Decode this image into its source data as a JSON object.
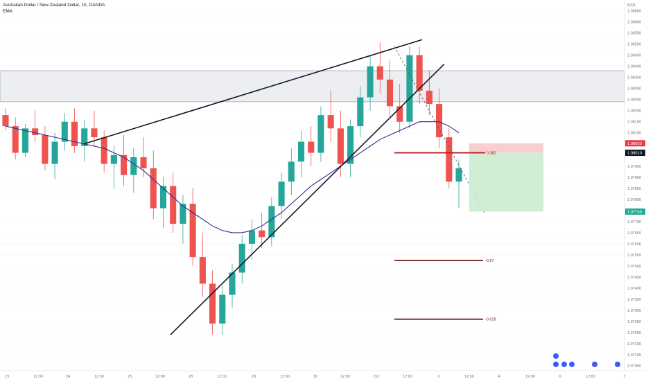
{
  "legend": {
    "symbol_line": "Australian Dollar / New Zealand Dollar, 1h, OANDA",
    "indicator": "EMA"
  },
  "price_axis": {
    "currency": "NZD",
    "labels": [
      "1.08650",
      "1.08600",
      "1.08550",
      "1.08500",
      "1.08450",
      "1.08400",
      "1.08350",
      "1.08300",
      "1.08250",
      "1.08200",
      "1.08150",
      "1.08100",
      "1.07950",
      "1.07900",
      "1.07850",
      "1.07800",
      "1.07700",
      "1.07650",
      "1.07600",
      "1.07550",
      "1.07500",
      "1.07450",
      "1.07400",
      "1.07350",
      "1.07300",
      "1.07250",
      "1.07200",
      "1.07150",
      "1.07100",
      "1.07050"
    ],
    "badges": {
      "stop": "1.08053",
      "entry": "1.08010",
      "target": "1.07745"
    },
    "colors": {
      "stop": "#f23645",
      "entry": "#131722",
      "target": "#22ab94"
    }
  },
  "time_axis": {
    "labels": [
      "23",
      "12:00",
      "24",
      "12:00",
      "25",
      "12:00",
      "28",
      "12:00",
      "29",
      "12:00",
      "30",
      "12:00",
      "Oct",
      "12:00",
      "2",
      "12:00",
      "4",
      "12:00",
      "6",
      "12:00",
      "7"
    ]
  },
  "fib_levels": {
    "level_a": "0.382",
    "level_b": "-0.27",
    "level_c": "-0.618"
  },
  "chart_data": {
    "type": "candlestick",
    "symbol": "Australian Dollar / New Zealand Dollar, 1h, OANDA",
    "indicator": "EMA",
    "ylim": [
      1.0705,
      1.0868
    ],
    "colors": {
      "up": "#26a69a",
      "down": "#ef5350",
      "ema": "#2a2e8a",
      "zone": "#eceef2"
    },
    "resistance_zone": [
      1.0824,
      1.0838
    ],
    "trendline_upper": [
      [
        1.0805,
        "24"
      ],
      [
        1.0852,
        "Oct"
      ]
    ],
    "trendline_lower": [
      [
        1.0719,
        "25 12:00"
      ],
      [
        1.0841,
        "2"
      ]
    ],
    "position": {
      "stop": 1.08053,
      "entry": 1.0801,
      "target": 1.07745
    },
    "fib_values": {
      "0.382": 1.0801,
      "-0.27": 1.07525,
      "-0.618": 1.0726
    },
    "ema_values": [
      1.0813,
      1.0812,
      1.0811,
      1.081,
      1.0809,
      1.0808,
      1.0807,
      1.0806,
      1.0805,
      1.0804,
      1.0803,
      1.0801,
      1.0799,
      1.0796,
      1.0793,
      1.0789,
      1.0785,
      1.0781,
      1.0777,
      1.0774,
      1.0771,
      1.0768,
      1.0766,
      1.0765,
      1.0765,
      1.0766,
      1.0768,
      1.0771,
      1.0774,
      1.0778,
      1.0782,
      1.0786,
      1.0789,
      1.0792,
      1.0795,
      1.0798,
      1.0801,
      1.0804,
      1.0807,
      1.0809,
      1.0811,
      1.0813,
      1.0815,
      1.0815,
      1.0815,
      1.0813,
      1.081
    ],
    "candles": [
      [
        1.0818,
        1.0821,
        1.0811,
        1.0813
      ],
      [
        1.0813,
        1.0817,
        1.0798,
        1.0801
      ],
      [
        1.0801,
        1.0814,
        1.0799,
        1.0812
      ],
      [
        1.0812,
        1.082,
        1.0806,
        1.0809
      ],
      [
        1.0809,
        1.0813,
        1.0793,
        1.0796
      ],
      [
        1.0796,
        1.081,
        1.0789,
        1.0806
      ],
      [
        1.0806,
        1.0819,
        1.0802,
        1.0815
      ],
      [
        1.0815,
        1.0821,
        1.0801,
        1.0804
      ],
      [
        1.0804,
        1.0816,
        1.0797,
        1.0812
      ],
      [
        1.0812,
        1.082,
        1.0804,
        1.0808
      ],
      [
        1.0808,
        1.0811,
        1.0792,
        1.0796
      ],
      [
        1.0796,
        1.0804,
        1.0785,
        1.08
      ],
      [
        1.08,
        1.0809,
        1.0786,
        1.0791
      ],
      [
        1.0791,
        1.0803,
        1.0783,
        1.0799
      ],
      [
        1.0799,
        1.0808,
        1.079,
        1.0794
      ],
      [
        1.0794,
        1.0802,
        1.0771,
        1.0776
      ],
      [
        1.0776,
        1.079,
        1.0767,
        1.0786
      ],
      [
        1.0786,
        1.0792,
        1.0765,
        1.0769
      ],
      [
        1.0769,
        1.0782,
        1.076,
        1.0778
      ],
      [
        1.0778,
        1.0785,
        1.075,
        1.0754
      ],
      [
        1.0754,
        1.0765,
        1.0736,
        1.0742
      ],
      [
        1.0742,
        1.0748,
        1.0719,
        1.0724
      ],
      [
        1.0724,
        1.0741,
        1.0719,
        1.0737
      ],
      [
        1.0737,
        1.0751,
        1.0731,
        1.0747
      ],
      [
        1.0747,
        1.0764,
        1.0742,
        1.076
      ],
      [
        1.076,
        1.0771,
        1.0753,
        1.0766
      ],
      [
        1.0766,
        1.0774,
        1.0758,
        1.0763
      ],
      [
        1.0763,
        1.0781,
        1.0759,
        1.0777
      ],
      [
        1.0777,
        1.0792,
        1.0771,
        1.0788
      ],
      [
        1.0788,
        1.0803,
        1.0782,
        1.0797
      ],
      [
        1.0797,
        1.0811,
        1.079,
        1.0806
      ],
      [
        1.0806,
        1.0813,
        1.0795,
        1.0801
      ],
      [
        1.0801,
        1.0822,
        1.0797,
        1.0818
      ],
      [
        1.0818,
        1.0829,
        1.0806,
        1.0812
      ],
      [
        1.0812,
        1.082,
        1.079,
        1.0796
      ],
      [
        1.0796,
        1.0816,
        1.079,
        1.0813
      ],
      [
        1.0813,
        1.0831,
        1.0808,
        1.0826
      ],
      [
        1.0826,
        1.0845,
        1.082,
        1.084
      ],
      [
        1.084,
        1.0851,
        1.0828,
        1.0834
      ],
      [
        1.0834,
        1.0843,
        1.0817,
        1.0822
      ],
      [
        1.0822,
        1.0832,
        1.081,
        1.0815
      ],
      [
        1.0815,
        1.0849,
        1.0812,
        1.0845
      ],
      [
        1.0845,
        1.0849,
        1.0823,
        1.0829
      ],
      [
        1.0829,
        1.0838,
        1.0818,
        1.0823
      ],
      [
        1.0823,
        1.083,
        1.0803,
        1.0808
      ],
      [
        1.0808,
        1.0812,
        1.0785,
        1.0788
      ],
      [
        1.0788,
        1.0798,
        1.0776,
        1.0794
      ]
    ]
  }
}
